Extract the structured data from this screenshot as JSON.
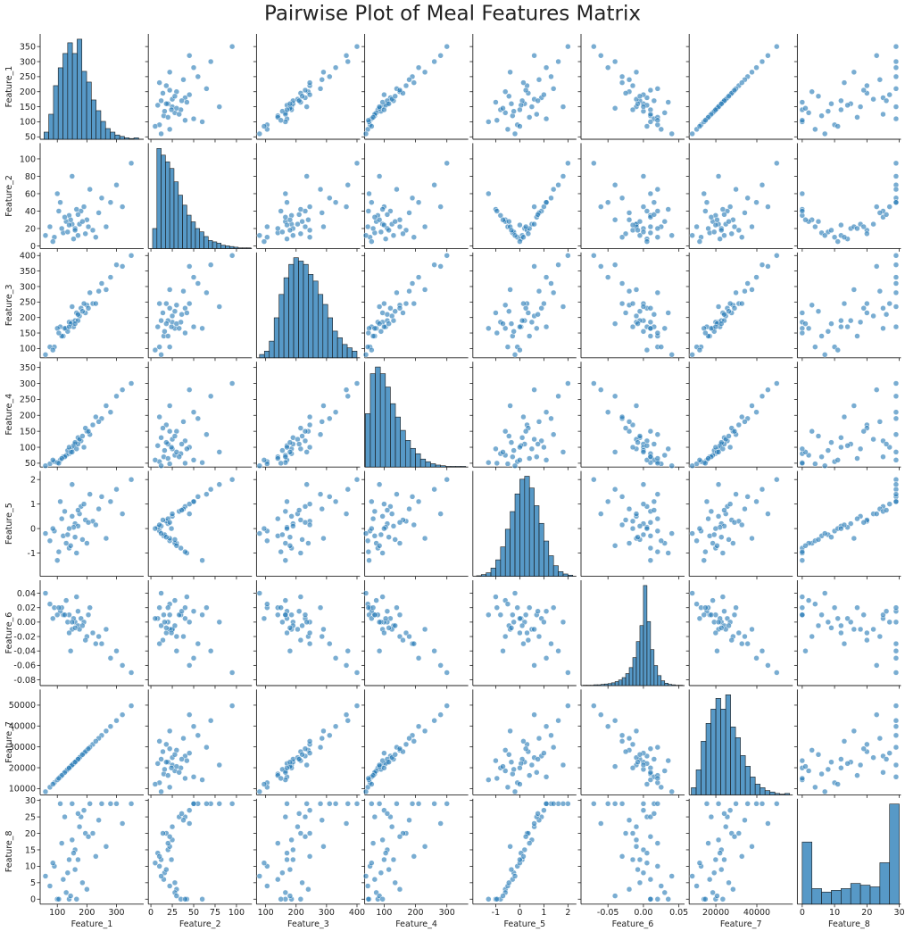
{
  "chart_data": {
    "type": "pairplot",
    "title": "Pairwise Plot of Meal Features Matrix",
    "color": "#1f77b4",
    "variables": [
      {
        "name": "Feature_1",
        "lim": [
          42,
          392
        ],
        "xticks": [
          100,
          200,
          300
        ],
        "yticks": [
          50,
          100,
          150,
          200,
          250,
          300,
          350
        ],
        "bins": [
          55,
          71,
          87,
          103,
          119,
          135,
          151,
          167,
          183,
          199,
          215,
          231,
          247,
          263,
          279,
          295,
          311,
          327,
          343,
          359,
          375
        ],
        "counts": [
          10,
          35,
          75,
          100,
          120,
          135,
          120,
          140,
          95,
          80,
          55,
          40,
          25,
          15,
          10,
          6,
          4,
          2,
          1,
          2
        ]
      },
      {
        "name": "Feature_2",
        "lim": [
          -3,
          118
        ],
        "xticks": [
          0,
          25,
          50,
          75,
          100
        ],
        "yticks": [
          0,
          20,
          40,
          60,
          80,
          100
        ],
        "bins": [
          2,
          7,
          12,
          17,
          22,
          27,
          32,
          37,
          42,
          47,
          52,
          57,
          62,
          67,
          72,
          77,
          82,
          87,
          92,
          97,
          102,
          107,
          112,
          117
        ],
        "counts": [
          30,
          150,
          140,
          130,
          120,
          100,
          80,
          65,
          50,
          40,
          30,
          25,
          18,
          12,
          10,
          8,
          5,
          4,
          3,
          2,
          1,
          1,
          1
        ]
      },
      {
        "name": "Feature_3",
        "lim": [
          70,
          410
        ],
        "xticks": [
          100,
          200,
          300,
          400
        ],
        "yticks": [
          100,
          150,
          200,
          250,
          300,
          350,
          400
        ],
        "bins": [
          80,
          96,
          112,
          128,
          144,
          160,
          176,
          192,
          208,
          224,
          240,
          256,
          272,
          288,
          304,
          320,
          336,
          352,
          368,
          384,
          400
        ],
        "counts": [
          5,
          10,
          25,
          60,
          95,
          120,
          140,
          150,
          145,
          140,
          125,
          115,
          95,
          80,
          60,
          40,
          30,
          20,
          15,
          10
        ]
      },
      {
        "name": "Feature_4",
        "lim": [
          38,
          368
        ],
        "xticks": [
          100,
          200,
          300
        ],
        "yticks": [
          50,
          100,
          150,
          200,
          250,
          300,
          350
        ],
        "bins": [
          40,
          56,
          72,
          88,
          104,
          120,
          136,
          152,
          168,
          184,
          200,
          216,
          232,
          248,
          264,
          280,
          296,
          312,
          328,
          344,
          360
        ],
        "counts": [
          80,
          140,
          150,
          140,
          120,
          95,
          75,
          55,
          40,
          28,
          20,
          12,
          8,
          5,
          3,
          2,
          1,
          1,
          1,
          1
        ]
      },
      {
        "name": "Feature_5",
        "lim": [
          -1.95,
          2.35
        ],
        "xticks": [
          -1,
          0,
          1,
          2
        ],
        "yticks": [
          -1,
          0,
          1,
          2
        ],
        "bins": [
          -1.8,
          -1.6,
          -1.4,
          -1.2,
          -1,
          -0.8,
          -0.6,
          -0.4,
          -0.2,
          0,
          0.2,
          0.4,
          0.6,
          0.8,
          1,
          1.2,
          1.4,
          1.6,
          1.8,
          2,
          2.2
        ],
        "counts": [
          1,
          3,
          6,
          14,
          28,
          50,
          80,
          110,
          140,
          165,
          170,
          150,
          120,
          90,
          60,
          35,
          18,
          8,
          4,
          2
        ]
      },
      {
        "name": "Feature_6",
        "lim": [
          -0.088,
          0.058
        ],
        "xticks": [
          -0.05,
          {
            "value": 0,
            "label": "0.00"
          },
          0.05
        ],
        "yticks": [
          -0.08,
          -0.06,
          -0.04,
          -0.02,
          {
            "value": 0,
            "label": "0.00"
          },
          0.02,
          0.04
        ],
        "bins": [
          -0.085,
          -0.08,
          -0.075,
          -0.07,
          -0.065,
          -0.06,
          -0.055,
          -0.05,
          -0.045,
          -0.04,
          -0.035,
          -0.03,
          -0.025,
          -0.02,
          -0.015,
          -0.01,
          -0.005,
          0,
          0.005,
          0.01,
          0.015,
          0.02,
          0.025,
          0.03,
          0.035,
          0.04,
          0.045,
          0.05,
          0.055
        ],
        "counts": [
          1,
          1,
          1,
          2,
          2,
          3,
          4,
          5,
          7,
          10,
          14,
          20,
          30,
          45,
          70,
          110,
          150,
          250,
          160,
          90,
          50,
          25,
          12,
          6,
          3,
          2,
          1,
          1
        ]
      },
      {
        "name": "Feature_7",
        "lim": [
          7000,
          57500
        ],
        "xticks": [
          20000,
          40000
        ],
        "yticks": [
          10000,
          20000,
          30000,
          40000,
          50000
        ],
        "bins": [
          8000,
          10400,
          12800,
          15200,
          17600,
          20000,
          22400,
          24800,
          27200,
          29600,
          32000,
          34400,
          36800,
          39200,
          41600,
          44000,
          46400,
          48800,
          51200,
          53600,
          56000
        ],
        "counts": [
          10,
          35,
          75,
          100,
          120,
          135,
          120,
          140,
          95,
          80,
          55,
          40,
          25,
          15,
          10,
          6,
          4,
          2,
          1,
          2
        ]
      },
      {
        "name": "Feature_8",
        "lim": [
          -1.5,
          30.5
        ],
        "xticks": [
          0,
          10,
          20,
          30
        ],
        "yticks": [
          0,
          5,
          10,
          15,
          20,
          25,
          30
        ],
        "bins": [
          0,
          3,
          6,
          9,
          12,
          15,
          18,
          21,
          24,
          27,
          30
        ],
        "counts": [
          180,
          45,
          35,
          40,
          45,
          60,
          55,
          50,
          120,
          290
        ]
      }
    ],
    "rows": [
      [
        120,
        15,
        140,
        70,
        -0.3,
        0.01,
        17000,
        6
      ],
      [
        150,
        25,
        185,
        95,
        0.5,
        -0.01,
        21300,
        18
      ],
      [
        180,
        40,
        230,
        120,
        0.9,
        0.005,
        25600,
        25
      ],
      [
        90,
        10,
        105,
        55,
        -0.1,
        0.02,
        12800,
        10
      ],
      [
        200,
        30,
        240,
        150,
        -0.6,
        -0.02,
        28400,
        3
      ],
      [
        250,
        55,
        310,
        190,
        1.3,
        -0.03,
        35500,
        29
      ],
      [
        160,
        20,
        190,
        110,
        0.2,
        0,
        22700,
        15
      ],
      [
        140,
        35,
        185,
        80,
        -0.8,
        0.01,
        19900,
        0
      ],
      [
        170,
        12,
        190,
        130,
        0.1,
        -0.005,
        24100,
        12
      ],
      [
        110,
        50,
        170,
        60,
        1.1,
        0.015,
        15600,
        29
      ],
      [
        220,
        18,
        245,
        170,
        0.3,
        -0.015,
        31200,
        20
      ],
      [
        300,
        70,
        370,
        260,
        1.6,
        -0.04,
        42600,
        29
      ],
      [
        130,
        28,
        165,
        75,
        -0.6,
        0.03,
        18500,
        2
      ],
      [
        190,
        45,
        245,
        100,
        1,
        0,
        27000,
        27
      ],
      [
        75,
        22,
        105,
        48,
        -0.5,
        0.025,
        10650,
        4
      ],
      [
        155,
        8,
        170,
        105,
        0.05,
        0.005,
        22000,
        14
      ],
      [
        240,
        38,
        285,
        180,
        0.8,
        -0.02,
        34100,
        24
      ],
      [
        100,
        60,
        165,
        52,
        -1.3,
        0.01,
        14200,
        0
      ],
      [
        175,
        25,
        205,
        125,
        0.6,
        -0.01,
        24850,
        22
      ],
      [
        350,
        95,
        400,
        300,
        2,
        -0.07,
        49700,
        29
      ],
      [
        135,
        16,
        155,
        90,
        -0.25,
        0,
        19200,
        8
      ],
      [
        210,
        65,
        280,
        140,
        1.4,
        0.02,
        29800,
        29
      ],
      [
        145,
        30,
        180,
        85,
        -0.7,
        -0.04,
        20600,
        1
      ],
      [
        265,
        22,
        290,
        230,
        -0.4,
        -0.01,
        37600,
        16
      ],
      [
        165,
        42,
        215,
        95,
        -1,
        0.035,
        23400,
        0
      ],
      [
        85,
        5,
        95,
        60,
        0,
        0.005,
        12100,
        11
      ],
      [
        195,
        14,
        215,
        160,
        0.35,
        -0.025,
        27700,
        20
      ],
      [
        125,
        33,
        165,
        70,
        0.7,
        0.01,
        17750,
        25
      ],
      [
        280,
        50,
        330,
        210,
        1.1,
        -0.05,
        39800,
        29
      ],
      [
        115,
        20,
        140,
        65,
        0.4,
        0.02,
        16300,
        17
      ],
      [
        185,
        28,
        220,
        135,
        -0.45,
        -0.005,
        26300,
        5
      ],
      [
        150,
        80,
        235,
        85,
        1.8,
        0,
        21300,
        29
      ],
      [
        60,
        12,
        80,
        42,
        -0.2,
        0.04,
        8500,
        7
      ],
      [
        230,
        10,
        245,
        195,
        0.15,
        -0.03,
        32700,
        13
      ],
      [
        170,
        36,
        210,
        110,
        0.75,
        0.015,
        24100,
        26
      ],
      [
        140,
        24,
        170,
        100,
        0,
        -0.015,
        19900,
        12
      ],
      [
        320,
        45,
        365,
        280,
        0.6,
        -0.06,
        45400,
        23
      ],
      [
        105,
        40,
        150,
        50,
        -0.95,
        0.02,
        14900,
        0
      ],
      [
        205,
        22,
        230,
        150,
        0.25,
        0.01,
        29100,
        19
      ],
      [
        160,
        18,
        180,
        115,
        -0.35,
        -0.008,
        22700,
        9
      ]
    ]
  }
}
